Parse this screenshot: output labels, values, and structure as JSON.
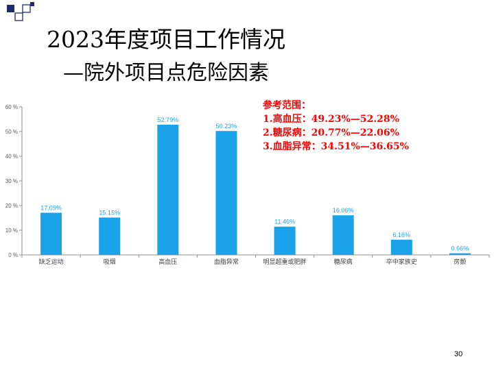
{
  "slide": {
    "title": "2023年度项目工作情况",
    "subtitle": "—院外项目点危险因素",
    "page_number": "30"
  },
  "reference": {
    "heading": "参考范围：",
    "lines": [
      "1.高血压：49.23%—52.28%",
      "2.糖尿病：20.77%—22.06%",
      "3.血脂异常：34.51%—36.65%"
    ]
  },
  "colors": {
    "bar": "#1aa3e8",
    "reference_text": "#ff0000",
    "deco_dark": "#1f2a6b"
  },
  "chart_data": {
    "type": "bar",
    "categories": [
      "缺乏运动",
      "吸烟",
      "高血压",
      "血脂异常",
      "明显超重或肥胖",
      "糖尿病",
      "卒中家族史",
      "房颤"
    ],
    "values": [
      17.09,
      15.15,
      52.79,
      50.23,
      11.46,
      16.06,
      6.16,
      0.66
    ],
    "value_labels": [
      "17.09%",
      "15.15%",
      "52.79%",
      "50.23%",
      "11.46%",
      "16.06%",
      "6.16%",
      "0.66%"
    ],
    "ylim": [
      0,
      60
    ],
    "yticks": [
      0,
      10,
      20,
      30,
      40,
      50,
      60
    ],
    "ytick_labels": [
      "0 %",
      "10 %",
      "20 %",
      "30 %",
      "40 %",
      "50 %",
      "60 %"
    ],
    "grid": false,
    "legend": "none"
  }
}
